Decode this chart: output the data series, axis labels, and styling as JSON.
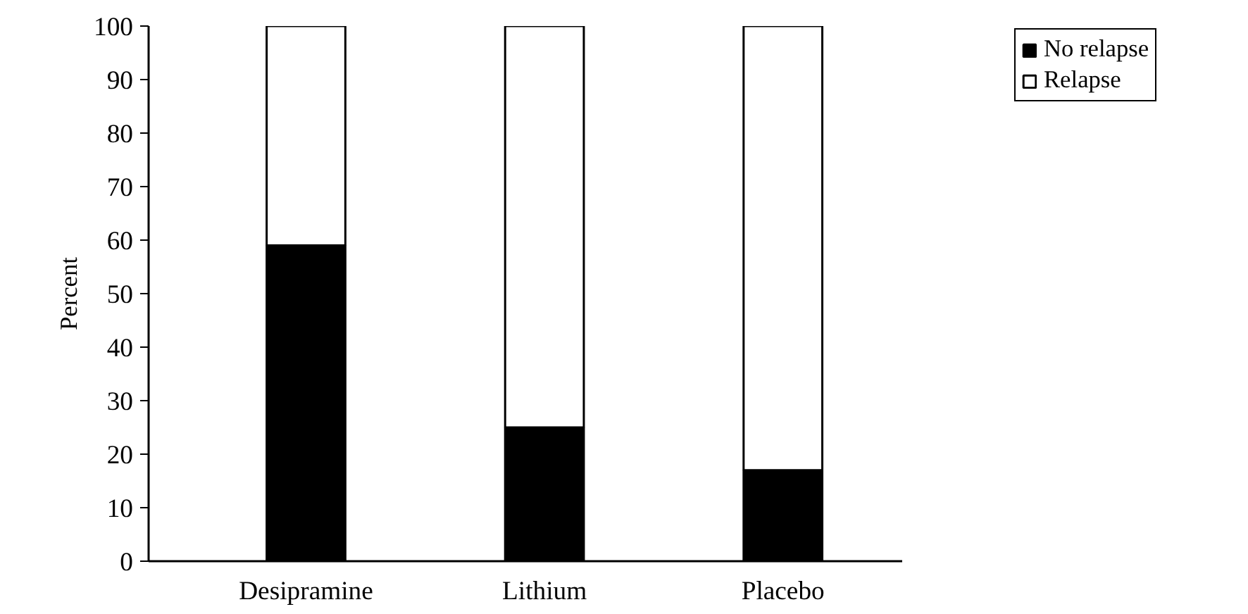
{
  "chart_data": {
    "type": "bar",
    "stacked": true,
    "ylabel": "Percent",
    "categories": [
      "Desipramine",
      "Lithium",
      "Placebo"
    ],
    "series": [
      {
        "name": "No relapse",
        "color": "#000000",
        "values": [
          59,
          25,
          17
        ]
      },
      {
        "name": "Relapse",
        "color": "#ffffff",
        "values": [
          41,
          75,
          83
        ]
      }
    ],
    "ylim": [
      0,
      100
    ],
    "yticks": [
      0,
      10,
      20,
      30,
      40,
      50,
      60,
      70,
      80,
      90,
      100
    ],
    "grid": false,
    "legend": "top right"
  }
}
